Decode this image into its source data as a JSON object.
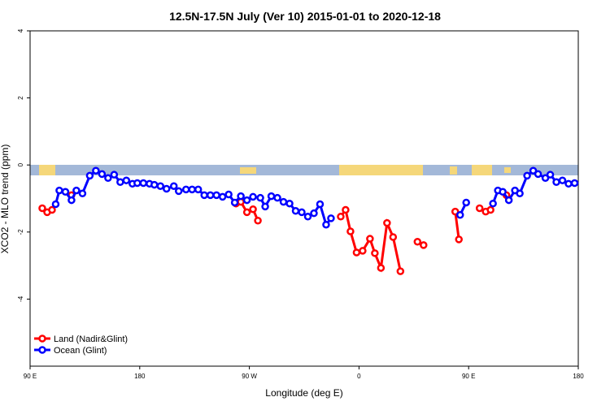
{
  "chart_data": {
    "type": "line",
    "title": "12.5N-17.5N July (Ver 10)   2015-01-01 to 2020-12-18",
    "x_label": "Longitude (deg E)",
    "y_label": "XCO2 - MLO trend (ppm)",
    "xlim": [
      90,
      540
    ],
    "xticks": [
      {
        "value": 90,
        "label": "90 E"
      },
      180,
      {
        "value": 270,
        "label": "90 W"
      },
      {
        "value": 360,
        "label": "0"
      },
      {
        "value": 450,
        "label": "90 E"
      },
      {
        "value": 540,
        "label": "180"
      }
    ],
    "ylim": [
      -6,
      4
    ],
    "yticks": [
      4,
      2,
      0,
      -2,
      -4
    ],
    "legend": "bottom-left",
    "series": [
      {
        "name": "Land (Nadir&Glint)",
        "color": "#ff0000",
        "x": [
          100,
          104,
          108,
          116,
          124,
          190,
          259,
          263,
          268,
          273,
          277,
          310,
          345,
          349,
          353,
          358,
          363,
          369,
          373,
          378,
          383,
          388,
          394,
          400,
          408,
          413,
          425,
          439,
          442,
          450,
          459,
          464,
          468,
          475,
          481
        ],
        "values": [
          -1.29,
          -1.41,
          -1.34,
          null,
          -0.9,
          null,
          -1.15,
          -1.1,
          -1.41,
          -1.32,
          -1.66,
          null,
          -1.54,
          -1.34,
          -1.98,
          -2.61,
          -2.56,
          -2.2,
          -2.63,
          -3.07,
          -1.73,
          -2.15,
          -3.17,
          null,
          -2.29,
          -2.39,
          null,
          -1.39,
          -2.22,
          null,
          -1.29,
          -1.39,
          -1.34,
          null,
          -0.9
        ]
      },
      {
        "name": "Ocean (Glint)",
        "color": "#0000ff",
        "x": [
          111,
          114,
          119,
          124,
          128,
          133,
          139,
          144,
          149,
          154,
          159,
          164,
          169,
          174,
          178,
          183,
          188,
          192,
          197,
          202,
          208,
          212,
          218,
          223,
          228,
          233,
          238,
          243,
          248,
          253,
          258,
          263,
          268,
          273,
          279,
          283,
          288,
          293,
          298,
          303,
          308,
          313,
          318,
          323,
          328,
          333,
          337,
          390,
          443,
          448,
          460,
          470,
          474,
          478,
          483,
          488,
          492,
          498,
          503,
          507,
          513,
          517,
          522,
          527,
          532,
          537
        ],
        "values": [
          -1.17,
          -0.76,
          -0.8,
          -1.05,
          -0.76,
          -0.85,
          -0.32,
          -0.17,
          -0.27,
          -0.39,
          -0.29,
          -0.51,
          -0.46,
          -0.56,
          -0.54,
          -0.54,
          -0.56,
          -0.59,
          -0.63,
          -0.71,
          -0.63,
          -0.78,
          -0.73,
          -0.73,
          -0.73,
          -0.9,
          -0.9,
          -0.9,
          -0.95,
          -0.88,
          -1.12,
          -0.93,
          -1.05,
          -0.95,
          -0.98,
          -1.24,
          -0.93,
          -0.98,
          -1.1,
          -1.15,
          -1.37,
          -1.41,
          -1.54,
          -1.44,
          -1.17,
          -1.78,
          -1.59,
          null,
          -1.49,
          -1.12,
          null,
          -1.15,
          -0.76,
          -0.8,
          -1.05,
          -0.76,
          -0.85,
          -0.32,
          -0.17,
          -0.27,
          -0.39,
          -0.29,
          -0.51,
          -0.46,
          -0.56,
          -0.54
        ]
      }
    ]
  }
}
